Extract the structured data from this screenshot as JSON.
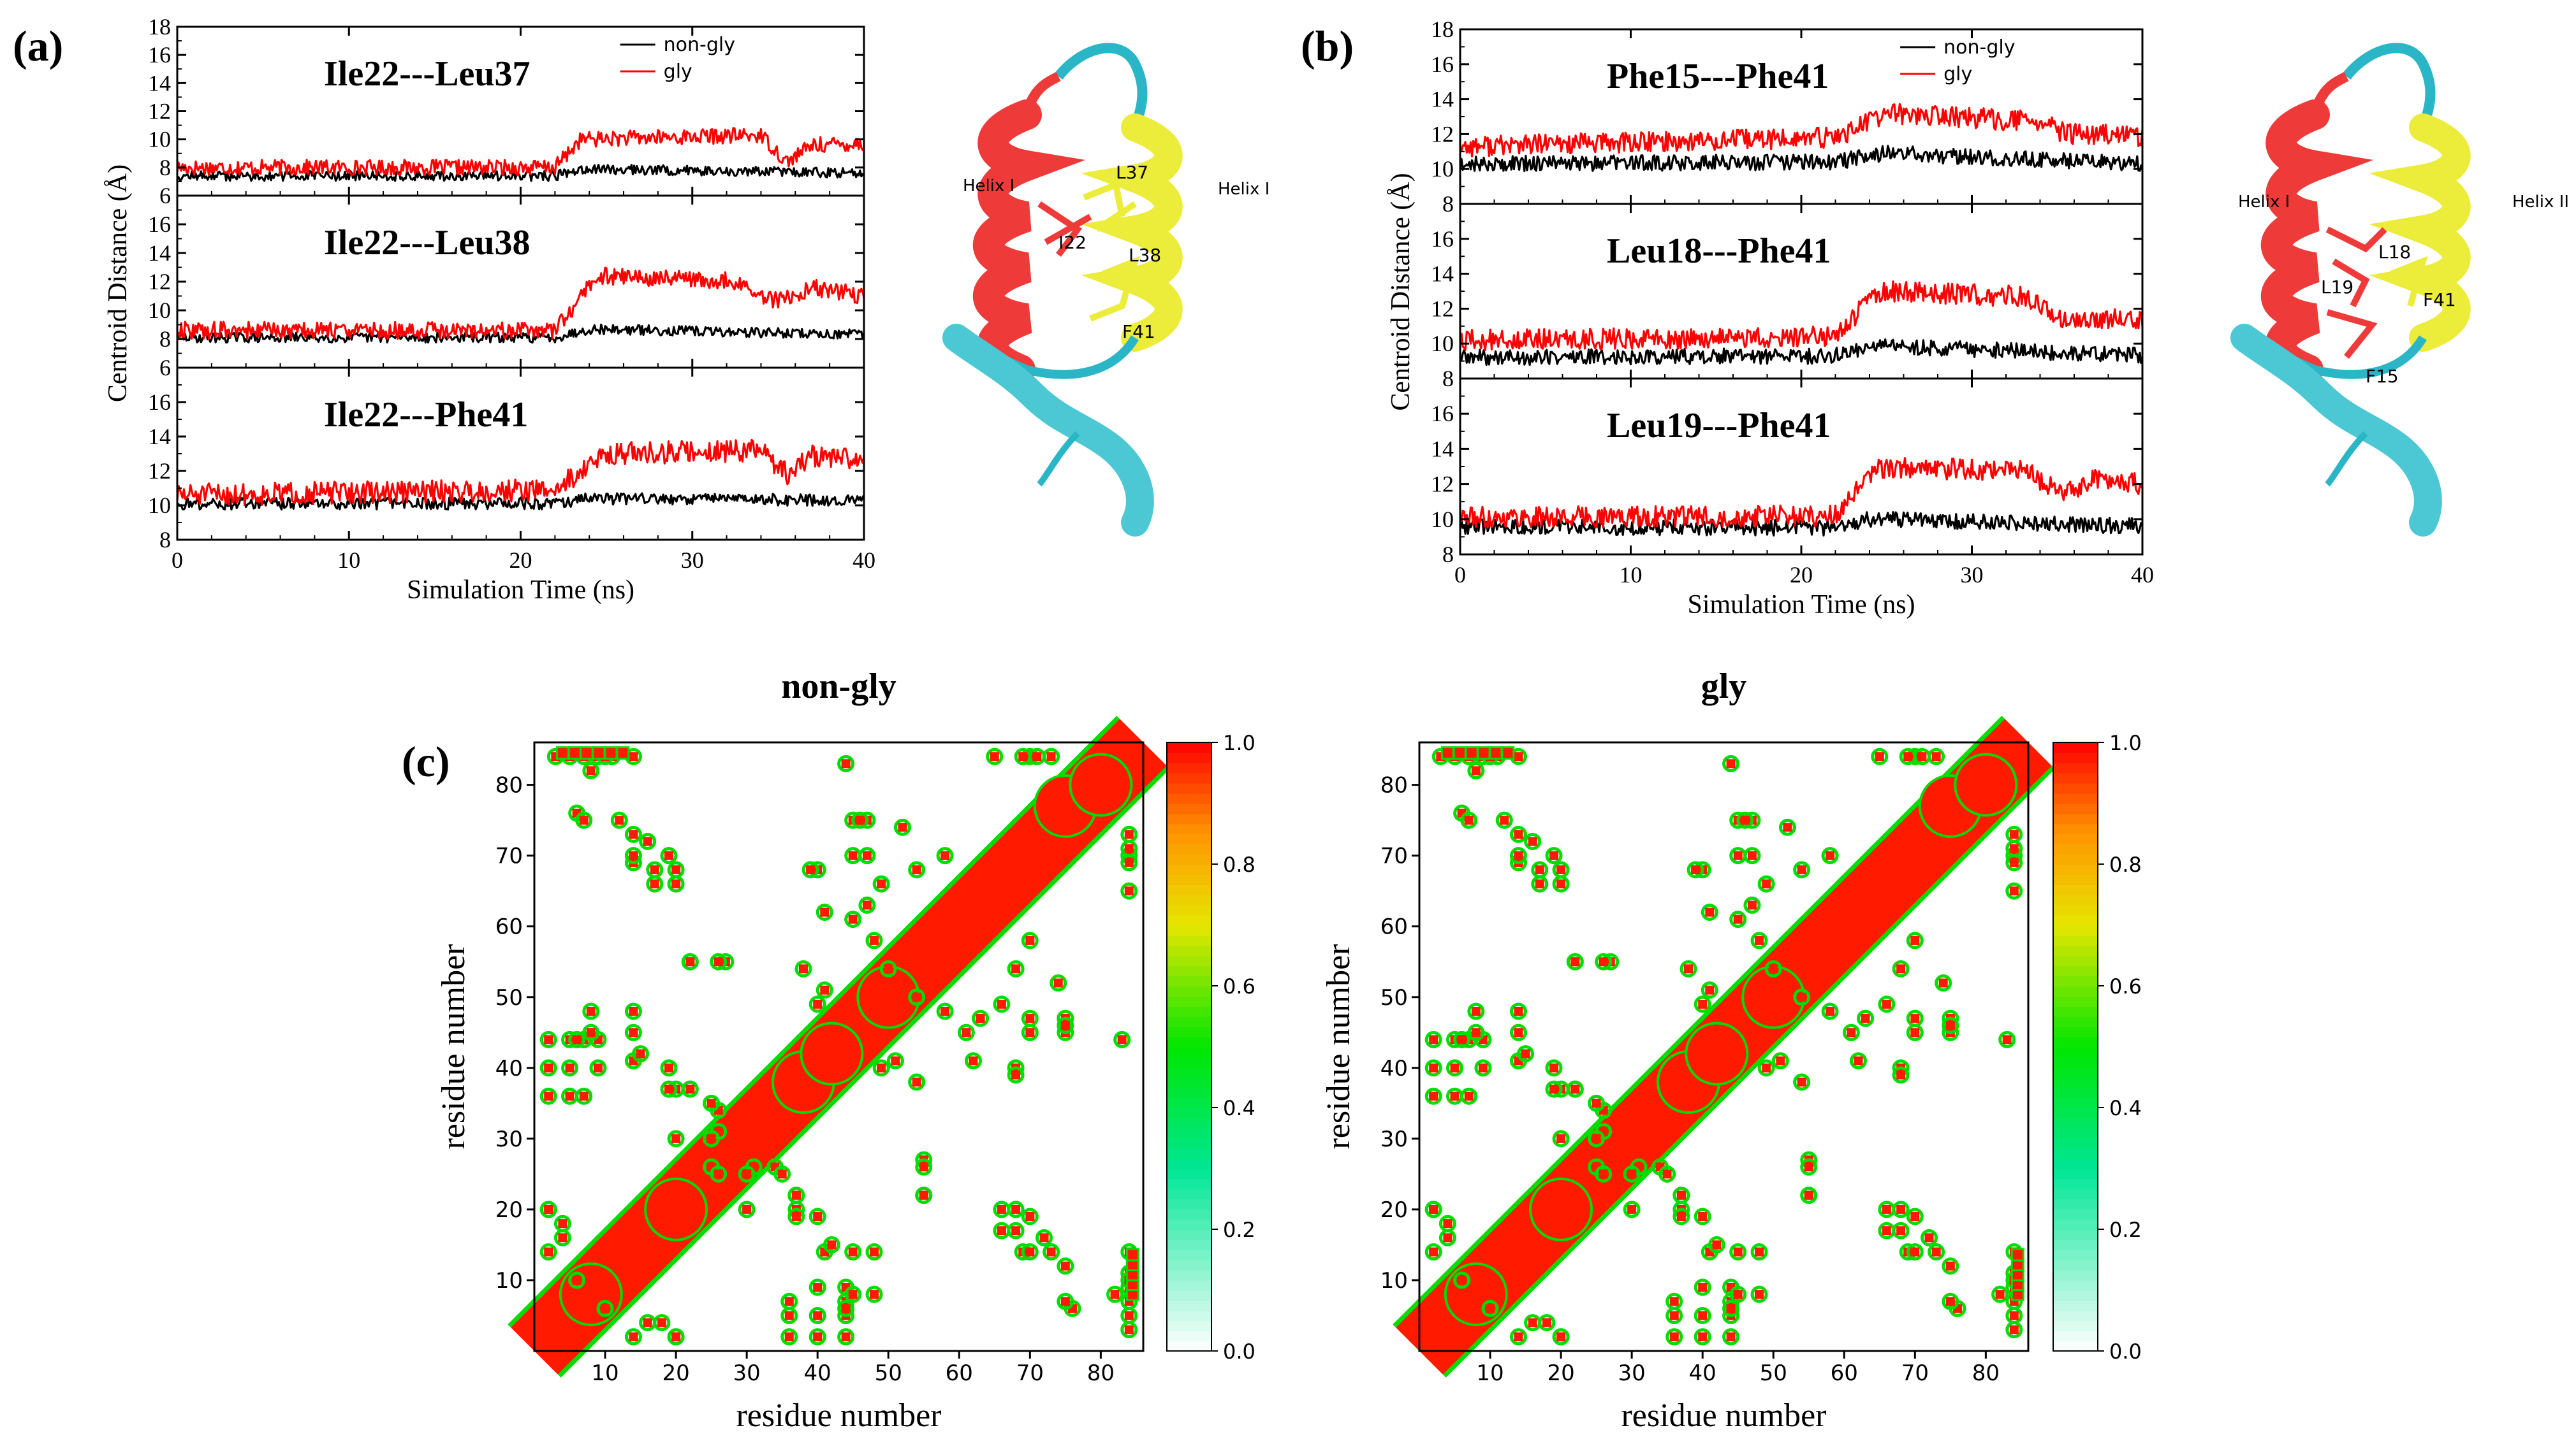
{
  "panel_labels": {
    "a": "(a)",
    "b": "(b)",
    "c": "(c)"
  },
  "colors": {
    "nongly": "#000000",
    "gly": "#ff0000",
    "helix1": "#ef3a3a",
    "helix2": "#ecec3a",
    "coil": "#2ab6c6"
  },
  "chart_data": [
    {
      "type": "line",
      "panel": "a",
      "ylabel": "Centroid Distance (Å)",
      "xlabel": "Simulation Time (ns)",
      "xlim": [
        0,
        40
      ],
      "xticks": [
        "0",
        "10",
        "20",
        "30",
        "40"
      ],
      "legend": [
        "non-gly",
        "gly"
      ],
      "subplots": [
        {
          "title": "Ile22---Leu37",
          "ylim": [
            6,
            18
          ],
          "yticks": [
            "6",
            "8",
            "10",
            "12",
            "14",
            "16",
            "18"
          ],
          "series": [
            {
              "name": "non-gly",
              "segments": [
                [
                  0,
                  7.4
                ],
                [
                  22,
                  7.4
                ],
                [
                  23.5,
                  7.9
                ],
                [
                  40,
                  7.6
                ]
              ],
              "noise": 0.35
            },
            {
              "name": "gly",
              "segments": [
                [
                  0,
                  8.0
                ],
                [
                  22,
                  8.0
                ],
                [
                  23.5,
                  10.0
                ],
                [
                  34,
                  10.3
                ],
                [
                  35.5,
                  8.4
                ],
                [
                  37,
                  9.6
                ],
                [
                  40,
                  9.7
                ]
              ],
              "noise": 0.55
            }
          ]
        },
        {
          "title": "Ile22---Leu38",
          "ylim": [
            6,
            18
          ],
          "yticks": [
            "6",
            "8",
            "10",
            "12",
            "14",
            "16"
          ],
          "series": [
            {
              "name": "non-gly",
              "segments": [
                [
                  0,
                  8.1
                ],
                [
                  22,
                  8.1
                ],
                [
                  24,
                  8.7
                ],
                [
                  40,
                  8.3
                ]
              ],
              "noise": 0.35
            },
            {
              "name": "gly",
              "segments": [
                [
                  0,
                  8.6
                ],
                [
                  22,
                  8.6
                ],
                [
                  24.5,
                  12.4
                ],
                [
                  32,
                  12.1
                ],
                [
                  35,
                  10.6
                ],
                [
                  37,
                  11.6
                ],
                [
                  40,
                  11.0
                ]
              ],
              "noise": 0.6
            }
          ]
        },
        {
          "title": "Ile22---Phe41",
          "ylim": [
            8,
            18
          ],
          "yticks": [
            "8",
            "10",
            "12",
            "14",
            "16"
          ],
          "series": [
            {
              "name": "non-gly",
              "segments": [
                [
                  0,
                  10.1
                ],
                [
                  22,
                  10.1
                ],
                [
                  24,
                  10.4
                ],
                [
                  40,
                  10.3
                ]
              ],
              "noise": 0.35
            },
            {
              "name": "gly",
              "segments": [
                [
                  0,
                  10.6
                ],
                [
                  22,
                  10.9
                ],
                [
                  25,
                  13.0
                ],
                [
                  34,
                  13.2
                ],
                [
                  35.5,
                  11.8
                ],
                [
                  37,
                  12.9
                ],
                [
                  40,
                  12.6
                ]
              ],
              "noise": 0.65
            }
          ]
        }
      ]
    },
    {
      "type": "line",
      "panel": "b",
      "ylabel": "Centroid Distance (Å)",
      "xlabel": "Simulation Time (ns)",
      "xlim": [
        0,
        40
      ],
      "xticks": [
        "0",
        "10",
        "20",
        "30",
        "40"
      ],
      "legend": [
        "non-gly",
        "gly"
      ],
      "subplots": [
        {
          "title": "Phe15---Phe41",
          "ylim": [
            8,
            18
          ],
          "yticks": [
            "8",
            "10",
            "12",
            "14",
            "16",
            "18"
          ],
          "series": [
            {
              "name": "non-gly",
              "segments": [
                [
                  0,
                  10.3
                ],
                [
                  22,
                  10.4
                ],
                [
                  25,
                  10.9
                ],
                [
                  40,
                  10.3
                ]
              ],
              "noise": 0.45
            },
            {
              "name": "gly",
              "segments": [
                [
                  0,
                  11.3
                ],
                [
                  22,
                  11.8
                ],
                [
                  25,
                  13.2
                ],
                [
                  34,
                  12.7
                ],
                [
                  35.5,
                  12.0
                ],
                [
                  40,
                  11.9
                ]
              ],
              "noise": 0.6
            }
          ]
        },
        {
          "title": "Leu18---Phe41",
          "ylim": [
            8,
            18
          ],
          "yticks": [
            "8",
            "10",
            "12",
            "14",
            "16"
          ],
          "series": [
            {
              "name": "non-gly",
              "segments": [
                [
                  0,
                  9.2
                ],
                [
                  22,
                  9.3
                ],
                [
                  24,
                  9.9
                ],
                [
                  40,
                  9.3
                ]
              ],
              "noise": 0.45
            },
            {
              "name": "gly",
              "segments": [
                [
                  0,
                  10.2
                ],
                [
                  22,
                  10.4
                ],
                [
                  24.5,
                  13.0
                ],
                [
                  33,
                  12.7
                ],
                [
                  35.5,
                  11.2
                ],
                [
                  40,
                  11.5
                ]
              ],
              "noise": 0.6
            }
          ]
        },
        {
          "title": "Leu19---Phe41",
          "ylim": [
            8,
            18
          ],
          "yticks": [
            "8",
            "10",
            "12",
            "14",
            "16"
          ],
          "series": [
            {
              "name": "non-gly",
              "segments": [
                [
                  0,
                  9.6
                ],
                [
                  22,
                  9.5
                ],
                [
                  24,
                  10.0
                ],
                [
                  40,
                  9.6
                ]
              ],
              "noise": 0.45
            },
            {
              "name": "gly",
              "segments": [
                [
                  0,
                  10.1
                ],
                [
                  22,
                  10.2
                ],
                [
                  24.5,
                  12.9
                ],
                [
                  33,
                  12.8
                ],
                [
                  35.5,
                  11.4
                ],
                [
                  37,
                  12.3
                ],
                [
                  40,
                  12.0
                ]
              ],
              "noise": 0.6
            }
          ]
        }
      ]
    },
    {
      "type": "heatmap",
      "panel": "c",
      "maps": [
        {
          "title": "non-gly",
          "xlabel": "residue number",
          "ylabel": "residue number"
        },
        {
          "title": "gly",
          "xlabel": "residue number",
          "ylabel": "residue number"
        }
      ],
      "range": [
        0,
        86
      ],
      "ticks": [
        "10",
        "20",
        "30",
        "40",
        "50",
        "60",
        "70",
        "80"
      ],
      "colorbar_ticks": [
        "0.0",
        "0.2",
        "0.4",
        "0.6",
        "0.8",
        "1.0"
      ],
      "contacts": [
        [
          3,
          84
        ],
        [
          5,
          84
        ],
        [
          7,
          84
        ],
        [
          9,
          84
        ],
        [
          11,
          84
        ],
        [
          14,
          84
        ],
        [
          6,
          76
        ],
        [
          14,
          73
        ],
        [
          14,
          69
        ],
        [
          16,
          72
        ],
        [
          17,
          66
        ],
        [
          20,
          66
        ],
        [
          20,
          68
        ],
        [
          27,
          55
        ],
        [
          22,
          55
        ],
        [
          5,
          44
        ],
        [
          7,
          44
        ],
        [
          9,
          44
        ],
        [
          14,
          45
        ],
        [
          14,
          41
        ],
        [
          5,
          40
        ],
        [
          2,
          40
        ],
        [
          7,
          36
        ],
        [
          22,
          37
        ],
        [
          20,
          37
        ],
        [
          26,
          34
        ],
        [
          26,
          31
        ],
        [
          30,
          25
        ],
        [
          35,
          25
        ],
        [
          37,
          22
        ],
        [
          37,
          19
        ],
        [
          40,
          19
        ],
        [
          42,
          15
        ],
        [
          40,
          9
        ],
        [
          44,
          6
        ],
        [
          45,
          8
        ],
        [
          44,
          83
        ],
        [
          45,
          75
        ],
        [
          47,
          75
        ],
        [
          45,
          70
        ],
        [
          54,
          68
        ],
        [
          58,
          70
        ],
        [
          40,
          68
        ],
        [
          52,
          74
        ],
        [
          54,
          50
        ],
        [
          58,
          48
        ],
        [
          61,
          45
        ],
        [
          66,
          49
        ],
        [
          63,
          47
        ],
        [
          70,
          47
        ],
        [
          75,
          46
        ],
        [
          68,
          39
        ],
        [
          62,
          41
        ],
        [
          51,
          41
        ],
        [
          49,
          40
        ],
        [
          54,
          38
        ],
        [
          68,
          17
        ],
        [
          70,
          19
        ],
        [
          70,
          14
        ],
        [
          75,
          12
        ],
        [
          75,
          7
        ],
        [
          84,
          10
        ],
        [
          82,
          8
        ],
        [
          84,
          70
        ],
        [
          84,
          73
        ],
        [
          65,
          84
        ],
        [
          69,
          84
        ],
        [
          71,
          84
        ],
        [
          55,
          26
        ],
        [
          55,
          22
        ],
        [
          48,
          14
        ],
        [
          48,
          8
        ],
        [
          36,
          5
        ],
        [
          30,
          20
        ],
        [
          25,
          26
        ],
        [
          2,
          20
        ],
        [
          4,
          18
        ],
        [
          2,
          14
        ],
        [
          6,
          10
        ],
        [
          10,
          6
        ],
        [
          16,
          4
        ],
        [
          20,
          2
        ],
        [
          36,
          2
        ],
        [
          44,
          2
        ]
      ]
    }
  ],
  "structures": {
    "a": {
      "helix_left": "Helix I",
      "helix_right": "Helix I",
      "residues": [
        "L37",
        "I22",
        "L38",
        "F41"
      ]
    },
    "b": {
      "helix_left": "Helix I",
      "helix_right": "Helix II",
      "residues": [
        "L18",
        "L19",
        "F41",
        "F15"
      ]
    }
  }
}
